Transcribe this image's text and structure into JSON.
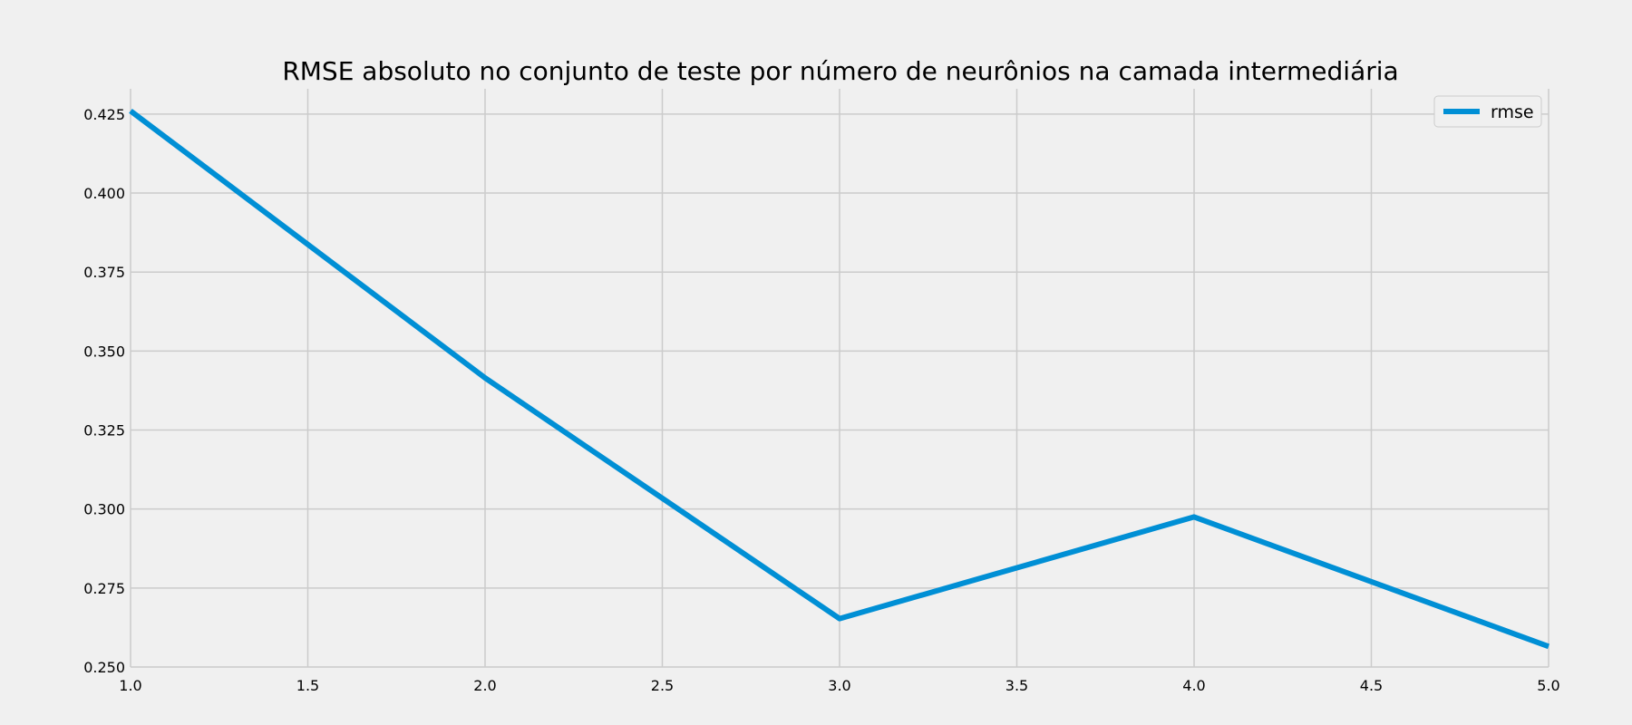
{
  "chart_data": {
    "type": "line",
    "title": "RMSE absoluto no conjunto de teste por número de neurônios na camada intermediária",
    "xlabel": "",
    "ylabel": "",
    "xlim": [
      1.0,
      5.0
    ],
    "ylim": [
      0.25,
      0.433
    ],
    "x_ticks": [
      "1.0",
      "1.5",
      "2.0",
      "2.5",
      "3.0",
      "3.5",
      "4.0",
      "4.5",
      "5.0"
    ],
    "y_ticks": [
      "0.250",
      "0.275",
      "0.300",
      "0.325",
      "0.350",
      "0.375",
      "0.400",
      "0.425"
    ],
    "grid": true,
    "legend_position": "top-right",
    "series": [
      {
        "name": "rmse",
        "color": "#008fd5",
        "x": [
          1,
          2,
          3,
          4,
          5
        ],
        "y": [
          0.426,
          0.3415,
          0.2653,
          0.2975,
          0.2565
        ]
      }
    ]
  }
}
